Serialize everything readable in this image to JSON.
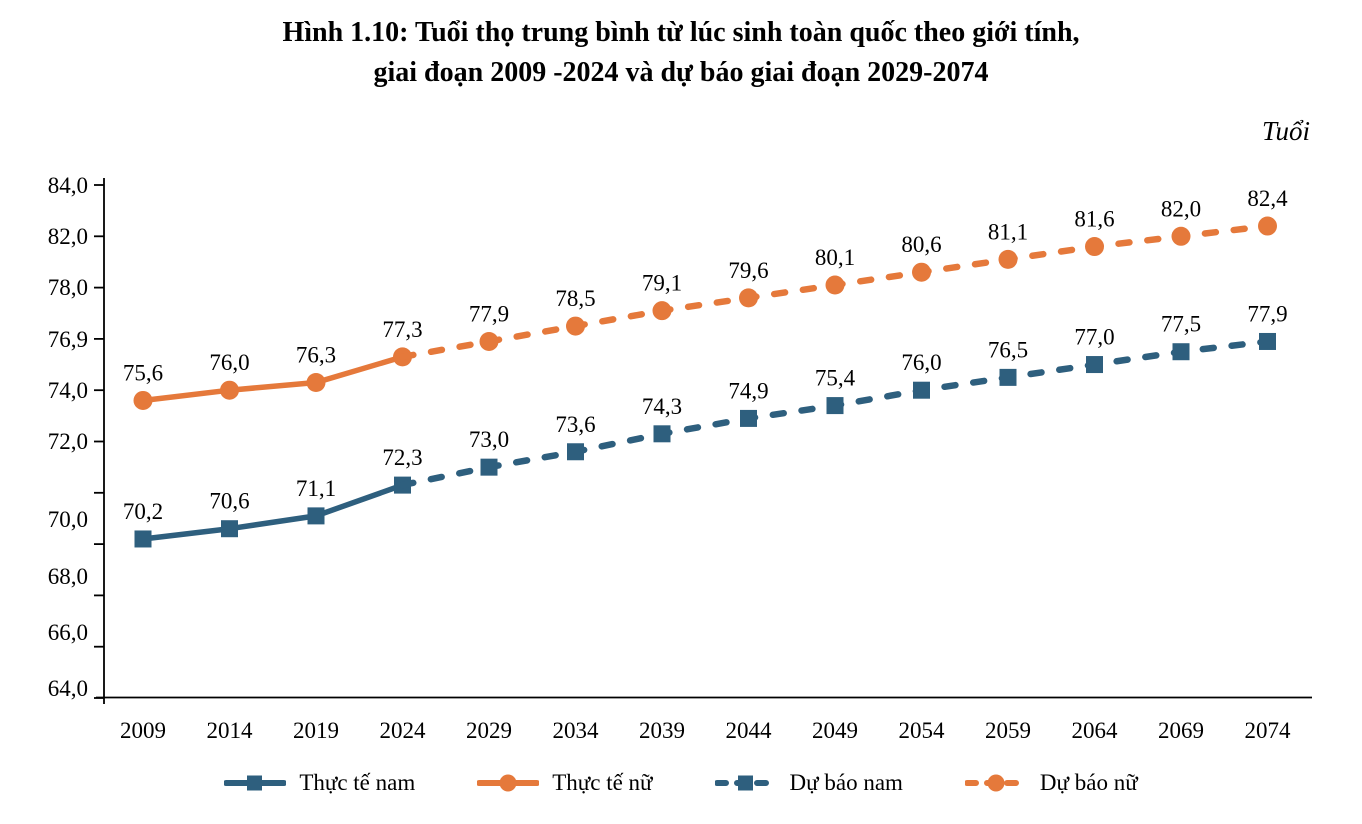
{
  "page": {
    "background": "#ffffff"
  },
  "chart_data": {
    "type": "line",
    "title_line1": "Hình 1.10: Tuổi thọ trung bình từ lúc sinh toàn quốc theo giới tính,",
    "title_line2": "giai đoạn 2009 -2024 và dự báo giai đoạn 2029-2074",
    "unit_label": "Tuổi",
    "x_categories": [
      "2009",
      "2014",
      "2019",
      "2024",
      "2029",
      "2034",
      "2039",
      "2044",
      "2049",
      "2054",
      "2059",
      "2064",
      "2069",
      "2074"
    ],
    "y_tick_labels": [
      "84,0",
      "82,0",
      "78,0",
      "76,9",
      "74,0",
      "72,0",
      "70,0",
      "68,0",
      "66,0",
      "64,0"
    ],
    "y_plot_range": [
      64,
      84
    ],
    "grid": false,
    "legend_position": "bottom",
    "colors": {
      "male": "#2E5F7E",
      "female": "#E5793B",
      "axis": "#000000",
      "text": "#000000"
    },
    "series": [
      {
        "id": "actual-male",
        "name": "Thực tế nam",
        "color_key": "male",
        "marker": "square",
        "dashed": false,
        "start_index": 0,
        "values": [
          70.2,
          70.6,
          71.1,
          72.3
        ],
        "labels": [
          "70,2",
          "70,6",
          "71,1",
          "72,3"
        ]
      },
      {
        "id": "actual-female",
        "name": "Thực tế nữ",
        "color_key": "female",
        "marker": "circle",
        "dashed": false,
        "start_index": 0,
        "values": [
          75.6,
          76.0,
          76.3,
          77.3
        ],
        "labels": [
          "75,6",
          "76,0",
          "76,3",
          "77,3"
        ]
      },
      {
        "id": "forecast-male",
        "name": "Dự báo nam",
        "color_key": "male",
        "marker": "square",
        "dashed": true,
        "start_index": 3,
        "anchor_first_point": true,
        "values": [
          72.3,
          73.0,
          73.6,
          74.3,
          74.9,
          75.4,
          76.0,
          76.5,
          77.0,
          77.5,
          77.9
        ],
        "labels": [
          null,
          "73,0",
          "73,6",
          "74,3",
          "74,9",
          "75,4",
          "76,0",
          "76,5",
          "77,0",
          "77,5",
          "77,9"
        ]
      },
      {
        "id": "forecast-female",
        "name": "Dự báo nữ",
        "color_key": "female",
        "marker": "circle",
        "dashed": true,
        "start_index": 3,
        "anchor_first_point": true,
        "values": [
          77.3,
          77.9,
          78.5,
          79.1,
          79.6,
          80.1,
          80.6,
          81.1,
          81.6,
          82.0,
          82.4
        ],
        "labels": [
          null,
          "77,9",
          "78,5",
          "79,1",
          "79,6",
          "80,1",
          "80,6",
          "81,1",
          "81,6",
          "82,0",
          "82,4"
        ]
      }
    ]
  }
}
